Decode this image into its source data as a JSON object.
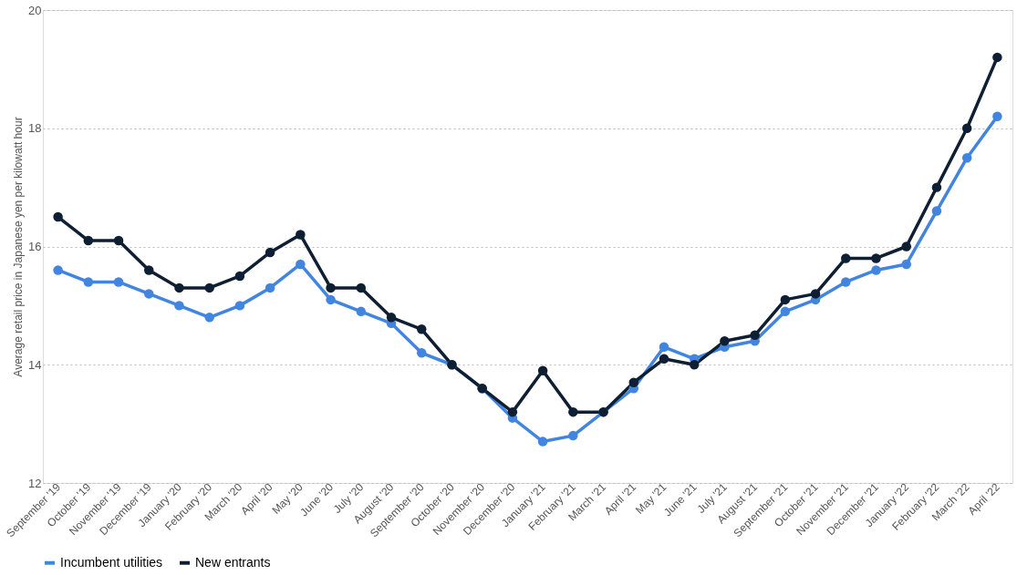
{
  "chart_data": {
    "type": "line",
    "ylabel": "Average retail price in Japanese yen per kilowatt hour",
    "categories": [
      "September '19",
      "October '19",
      "November '19",
      "December '19",
      "January '20",
      "February '20",
      "March '20",
      "April '20",
      "May '20",
      "June '20",
      "July '20",
      "August '20",
      "September '20",
      "October '20",
      "November '20",
      "December '20",
      "January '21",
      "February '21",
      "March '21",
      "April '21",
      "May '21",
      "June '21",
      "July '21",
      "August '21",
      "September '21",
      "October '21",
      "November '21",
      "December '21",
      "January '22",
      "February '22",
      "March '22",
      "April '22"
    ],
    "series": [
      {
        "name": "Incumbent utilities",
        "color": "#4285e0",
        "values": [
          15.6,
          15.4,
          15.4,
          15.2,
          15.0,
          14.8,
          15.0,
          15.3,
          15.7,
          15.1,
          14.9,
          14.7,
          14.2,
          14.0,
          13.6,
          13.1,
          12.7,
          12.8,
          13.2,
          13.6,
          14.3,
          14.1,
          14.3,
          14.4,
          14.9,
          15.1,
          15.4,
          15.6,
          15.7,
          16.6,
          17.5,
          18.2
        ]
      },
      {
        "name": "New entrants",
        "color": "#0f1f33",
        "values": [
          16.5,
          16.1,
          16.1,
          15.6,
          15.3,
          15.3,
          15.5,
          15.9,
          16.2,
          15.3,
          15.3,
          14.8,
          14.6,
          14.0,
          13.6,
          13.2,
          13.9,
          13.2,
          13.2,
          13.7,
          14.1,
          14.0,
          14.4,
          14.5,
          15.1,
          15.2,
          15.8,
          15.8,
          16.0,
          17.0,
          18.0,
          19.2
        ]
      }
    ],
    "ylim": [
      12,
      20
    ],
    "yticks": [
      12,
      14,
      16,
      18,
      20
    ],
    "grid": "y",
    "legend": "bottom",
    "marker": "circle",
    "line_style": "solid"
  }
}
